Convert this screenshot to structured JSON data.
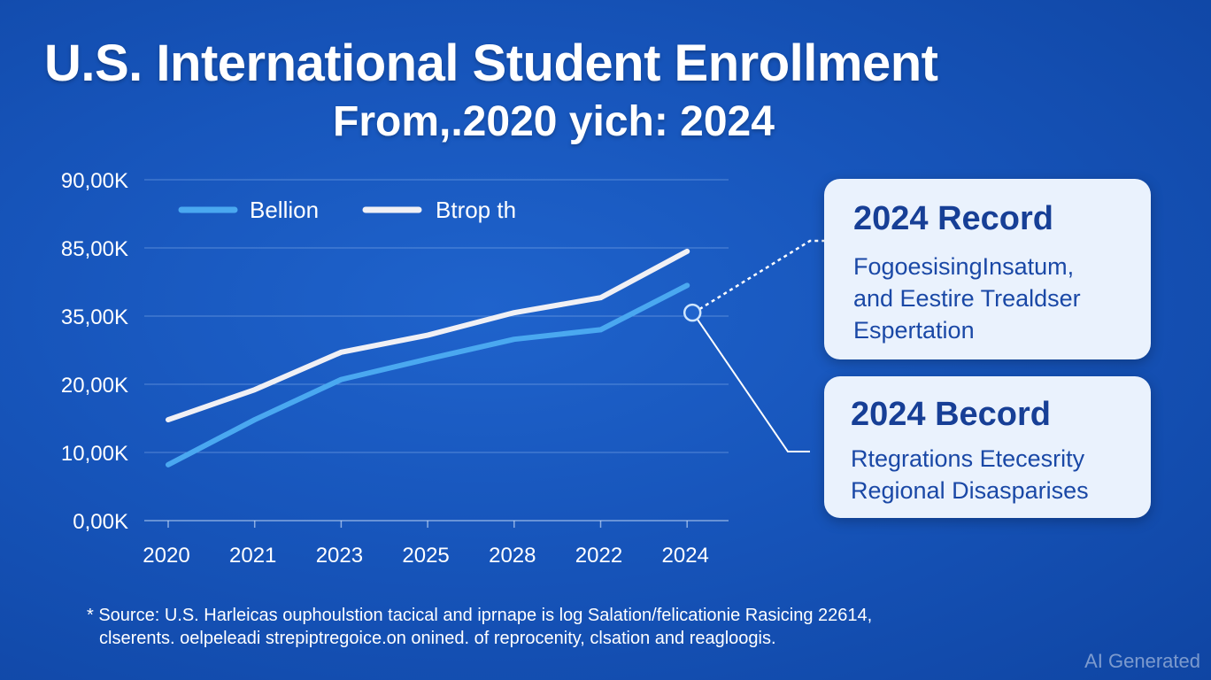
{
  "header": {
    "title": "U.S. International Student Enrollment",
    "subtitle": "From,.2020 yich: 2024"
  },
  "chart_data": {
    "type": "line",
    "title": "U.S. International Student Enrollment From,.2020 yich: 2024",
    "xlabel": "",
    "ylabel": "",
    "categories": [
      "2020",
      "2021",
      "2023",
      "2025",
      "2028",
      "2022",
      "2024"
    ],
    "y_ticks": [
      "0,00K",
      "10,00K",
      "20,00K",
      "35,00K",
      "85,00K",
      "90,00K"
    ],
    "y_index_range": [
      0,
      5
    ],
    "grid": true,
    "legend_position": "top-left",
    "series": [
      {
        "name": "Bellion",
        "color": "#4aa8f0",
        "values": [
          0.82,
          1.48,
          2.07,
          2.37,
          2.66,
          2.8,
          3.45
        ]
      },
      {
        "name": "Btrop th",
        "color": "#f0f0f5",
        "values": [
          1.48,
          1.92,
          2.47,
          2.72,
          3.05,
          3.27,
          3.95
        ]
      }
    ],
    "annotation_marker": {
      "category": "2024",
      "value": 3.05
    }
  },
  "cards": [
    {
      "title": "2024 Record",
      "lines": [
        "FogoesisingInsatum,",
        "and Eestire Trealdser",
        "Espertation"
      ]
    },
    {
      "title": "2024 Becord",
      "lines": [
        "Rtegrations Etecesrity",
        "Regional Disasparises"
      ]
    }
  ],
  "footnote": {
    "line1": "* Source:  U.S. Harleicas ouphoulstion tacical and iprnape is  log Salation/felicationie Rasicing 22614,",
    "line2": "clserents. oelpeleadi strepiptregoice.on onined. of reprocenity, clsation and reagloogis."
  },
  "watermark": "AI Generated"
}
